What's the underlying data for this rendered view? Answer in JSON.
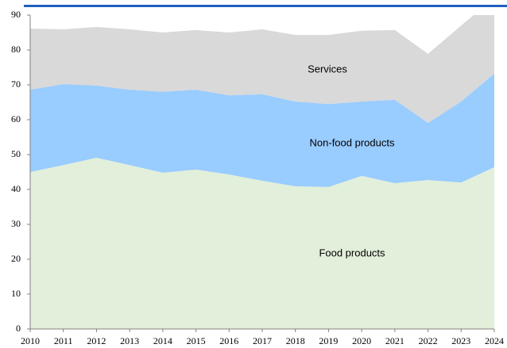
{
  "chart_data": {
    "type": "stacked_area",
    "categories": [
      "2010",
      "2011",
      "2012",
      "2013",
      "2014",
      "2015",
      "2016",
      "2017",
      "2018",
      "2019",
      "2020",
      "2021",
      "2022",
      "2023",
      "2024"
    ],
    "series": [
      {
        "name": "Food products",
        "color": "#e2efda",
        "values": [
          45.0,
          47.0,
          49.1,
          47.0,
          44.8,
          45.7,
          44.3,
          42.5,
          40.9,
          40.7,
          43.9,
          41.8,
          42.7,
          42.0,
          46.4
        ]
      },
      {
        "name": "Non-food products",
        "color": "#99ccff",
        "values": [
          23.6,
          23.2,
          20.7,
          21.6,
          23.2,
          22.9,
          22.7,
          24.8,
          24.3,
          23.8,
          21.3,
          23.9,
          16.4,
          23.2,
          26.8
        ]
      },
      {
        "name": "Services",
        "color": "#d9d9d9",
        "values": [
          17.5,
          15.7,
          16.8,
          17.3,
          17.0,
          17.1,
          18.0,
          18.6,
          19.1,
          19.8,
          20.3,
          20.0,
          19.8,
          21.8,
          21.8
        ]
      }
    ],
    "ylim": [
      0,
      90
    ],
    "yticks": [
      0,
      10,
      20,
      30,
      40,
      50,
      60,
      70,
      80,
      90
    ]
  }
}
